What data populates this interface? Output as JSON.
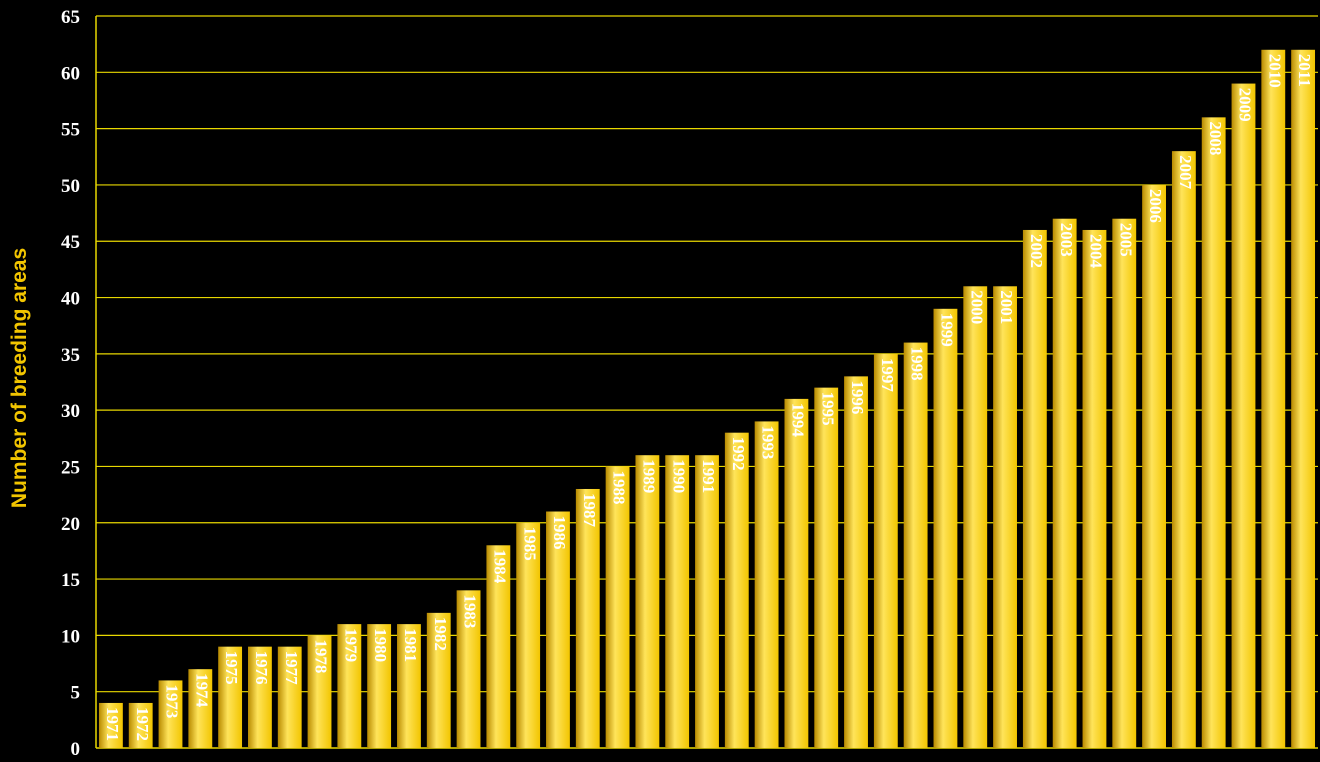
{
  "chart_data": {
    "type": "bar",
    "title": "",
    "xlabel": "",
    "ylabel": "Number of breeding areas",
    "ylim": [
      0,
      65
    ],
    "yticks": [
      0,
      5,
      10,
      15,
      20,
      25,
      30,
      35,
      40,
      45,
      50,
      55,
      60,
      65
    ],
    "grid": true,
    "categories": [
      "1971",
      "1972",
      "1973",
      "1974",
      "1975",
      "1976",
      "1977",
      "1978",
      "1979",
      "1980",
      "1981",
      "1982",
      "1983",
      "1984",
      "1985",
      "1986",
      "1987",
      "1988",
      "1989",
      "1990",
      "1991",
      "1992",
      "1993",
      "1994",
      "1995",
      "1996",
      "1997",
      "1998",
      "1999",
      "2000",
      "2001",
      "2002",
      "2003",
      "2004",
      "2005",
      "2006",
      "2007",
      "2008",
      "2009",
      "2010",
      "2011"
    ],
    "values": [
      4,
      4,
      6,
      7,
      9,
      9,
      9,
      10,
      11,
      11,
      11,
      12,
      14,
      18,
      20,
      21,
      23,
      25,
      26,
      26,
      26,
      28,
      29,
      31,
      32,
      33,
      35,
      36,
      39,
      41,
      41,
      46,
      47,
      46,
      47,
      50,
      53,
      56,
      59,
      62,
      62
    ]
  },
  "colors": {
    "background": "#000000",
    "bar": "#f2c500",
    "bar_highlight": "#ffe45a",
    "bar_shadow": "#b88a00",
    "gridline": "#e8d800",
    "axis": "#e8d800",
    "ylabel": "#f2c500",
    "tick_text": "#ffffff",
    "bar_label": "#ffffff"
  }
}
